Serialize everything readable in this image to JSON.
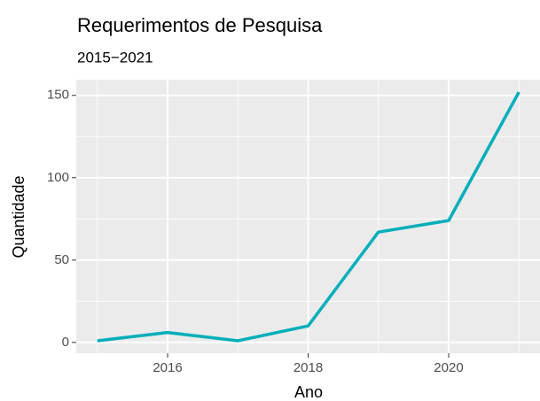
{
  "chart_data": {
    "type": "line",
    "title": "Requerimentos de Pesquisa",
    "subtitle": "2015−2021",
    "x_label": "Ano",
    "y_label": "Quantidade",
    "x": [
      2015,
      2016,
      2017,
      2018,
      2019,
      2020,
      2021
    ],
    "series": [
      {
        "name": "Quantidade",
        "color": "#00AFBB",
        "values": [
          1,
          6,
          1,
          10,
          67,
          74,
          152
        ]
      }
    ],
    "xlim": [
      2014.7,
      2021.3
    ],
    "xticks": [
      2016,
      2018,
      2020
    ],
    "xticks_minor": [
      2015,
      2017,
      2019,
      2021
    ],
    "ylim": [
      -6.55,
      159.55
    ],
    "yticks": [
      0,
      50,
      100,
      150
    ],
    "yticks_minor": [
      25,
      75,
      125
    ],
    "grid": true
  }
}
